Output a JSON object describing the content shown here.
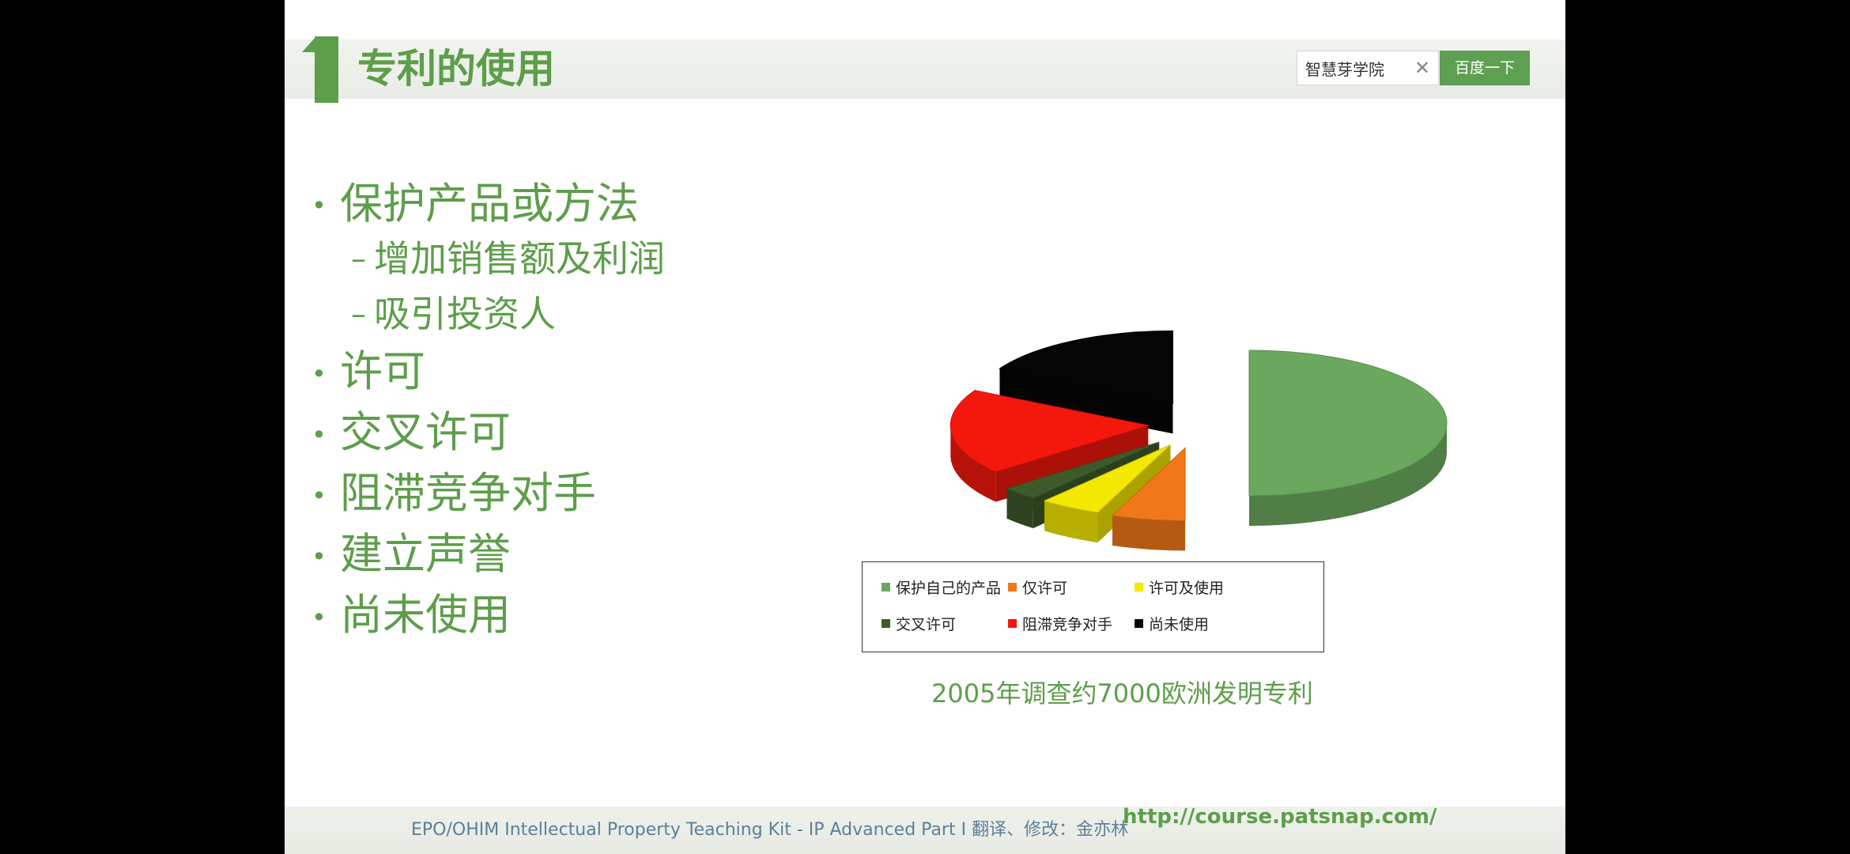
{
  "slide": {
    "title_number": "1",
    "title": "专利的使用"
  },
  "search": {
    "value": "智慧芽学院",
    "button_label": "百度一下"
  },
  "bullets": [
    {
      "text": "保护产品或方法",
      "sub": [
        "增加销售额及利润",
        "吸引投资人"
      ]
    },
    {
      "text": "许可"
    },
    {
      "text": "交叉许可"
    },
    {
      "text": "阻滞竞争对手"
    },
    {
      "text": "建立声誉"
    },
    {
      "text": "尚未使用"
    }
  ],
  "chart_data": {
    "type": "pie",
    "style": "3d-exploded",
    "categories": [
      "保护自己的产品",
      "仅许可",
      "许可及使用",
      "交叉许可",
      "阻滞竞争对手",
      "尚未使用"
    ],
    "values": [
      50,
      6,
      5,
      3,
      19,
      17
    ],
    "colors": [
      "#6aa85d",
      "#f07818",
      "#f4e800",
      "#3d5a2a",
      "#f4180c",
      "#050505"
    ],
    "legend": "bottom",
    "caption": "2005年调查约7000欧洲发明专利"
  },
  "footer": {
    "left_text": "EPO/OHIM     Intellectual Property Teaching Kit - IP Advanced Part I 翻译、修改：金亦林",
    "url": "http://course.patsnap.com/"
  }
}
